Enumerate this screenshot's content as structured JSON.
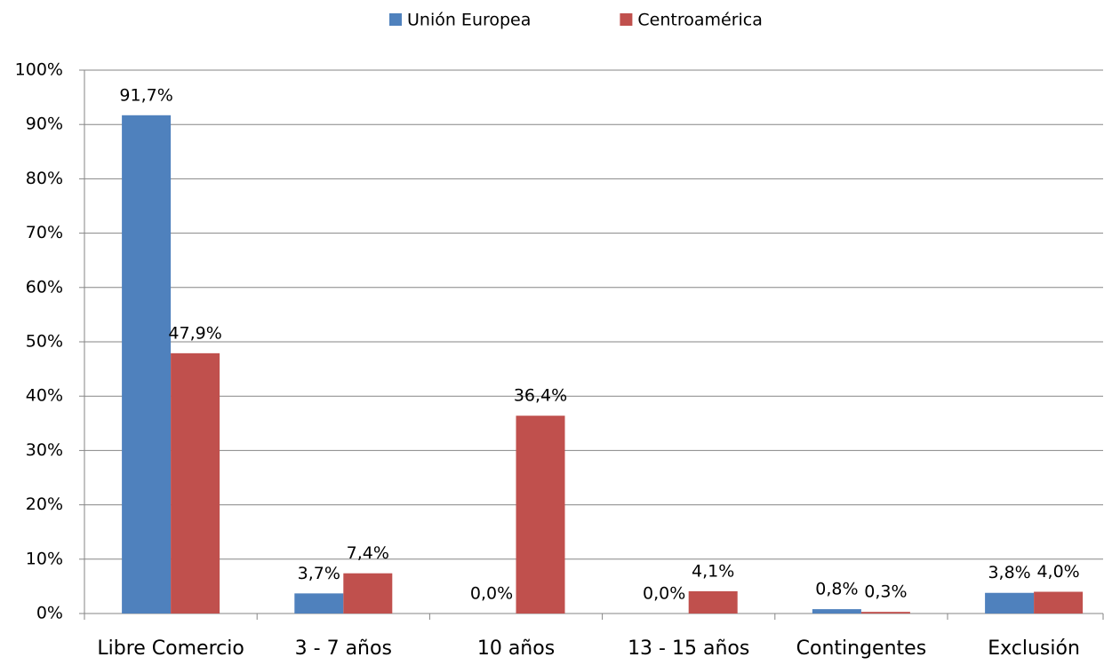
{
  "chart_data": {
    "type": "bar",
    "categories": [
      "Libre Comercio",
      "3 - 7 años",
      "10 años",
      "13 - 15 años",
      "Contingentes",
      "Exclusión"
    ],
    "series": [
      {
        "name": "Unión Europea",
        "color": "#4f81bd",
        "values": [
          91.7,
          3.7,
          0.0,
          0.0,
          0.8,
          3.8
        ],
        "value_labels": [
          "91,7%",
          "3,7%",
          "0,0%",
          "0,0%",
          "0,8%",
          "3,8%"
        ]
      },
      {
        "name": "Centroamérica",
        "color": "#c0504d",
        "values": [
          47.9,
          7.4,
          36.4,
          4.1,
          0.3,
          4.0
        ],
        "value_labels": [
          "47,9%",
          "7,4%",
          "36,4%",
          "4,1%",
          "0,3%",
          "4,0%"
        ]
      }
    ],
    "ylim": [
      0,
      100
    ],
    "yticks": [
      {
        "value": 0,
        "label": "0%"
      },
      {
        "value": 10,
        "label": "10%"
      },
      {
        "value": 20,
        "label": "20%"
      },
      {
        "value": 30,
        "label": "30%"
      },
      {
        "value": 40,
        "label": "40%"
      },
      {
        "value": 50,
        "label": "50%"
      },
      {
        "value": 60,
        "label": "60%"
      },
      {
        "value": 70,
        "label": "70%"
      },
      {
        "value": 80,
        "label": "80%"
      },
      {
        "value": 90,
        "label": "90%"
      },
      {
        "value": 100,
        "label": "100%"
      }
    ],
    "grid": true,
    "legend": "top"
  }
}
